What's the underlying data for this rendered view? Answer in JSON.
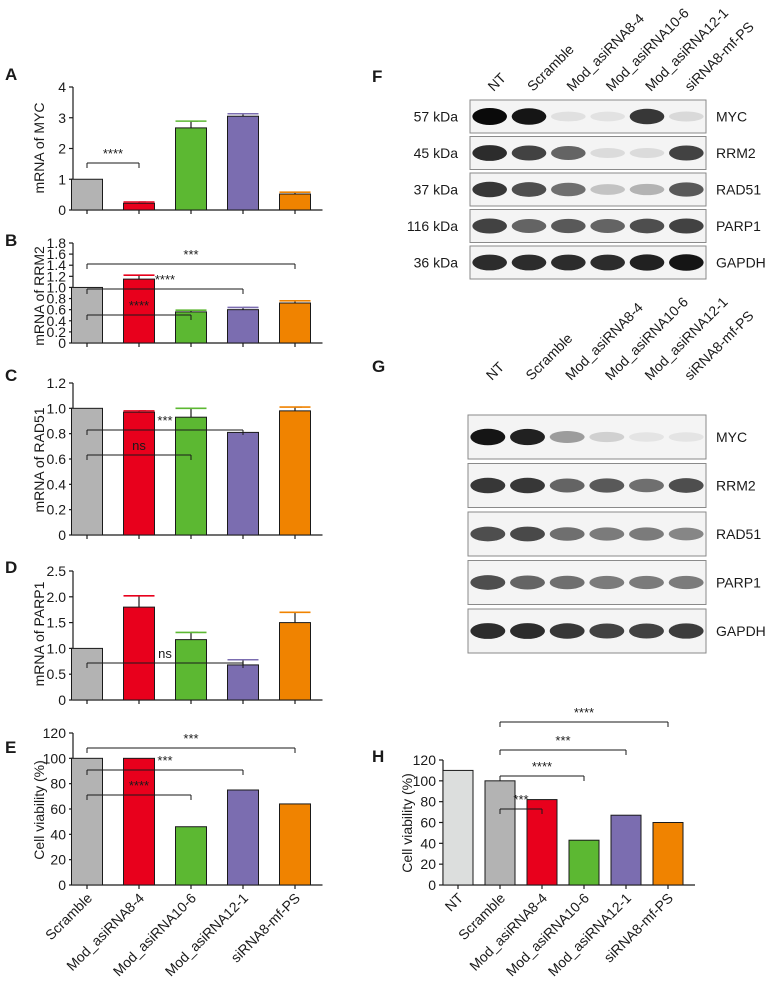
{
  "panel_letters": {
    "A": "A",
    "B": "B",
    "C": "C",
    "D": "D",
    "E": "E",
    "F": "F",
    "G": "G",
    "H": "H"
  },
  "colors": {
    "Scramble": "#b3b3b3",
    "Mod_asiRNA8-4": "#e8001c",
    "Mod_asiRNA10-6": "#5cb832",
    "Mod_asiRNA12-1": "#7b6db0",
    "siRNA8-mf-PS": "#f08300",
    "NT": "#dcdedd"
  },
  "chart_data": [
    {
      "id": "A",
      "type": "bar",
      "ylabel": "mRNA of MYC",
      "ylim": [
        0,
        4
      ],
      "yticks": [
        "0",
        "1",
        "2",
        "3",
        "4"
      ],
      "categories": [
        "Scramble",
        "Mod_asiRNA8-4",
        "Mod_asiRNA10-6",
        "Mod_asiRNA12-1",
        "siRNA8-mf-PS"
      ],
      "values": [
        1.0,
        0.22,
        2.67,
        3.05,
        0.52
      ],
      "errors": [
        0,
        0.04,
        0.22,
        0.08,
        0.06
      ],
      "significance": [
        {
          "from": 0,
          "to": 1,
          "label": "****"
        }
      ]
    },
    {
      "id": "B",
      "type": "bar",
      "ylabel": "mRNA of RRM2",
      "ylim": [
        0,
        1.8
      ],
      "yticks": [
        "0",
        "0.2",
        "0.4",
        "0.6",
        "0.8",
        "1.0",
        "1.2",
        "1.4",
        "1.6",
        "1.8"
      ],
      "categories": [
        "Scramble",
        "Mod_asiRNA8-4",
        "Mod_asiRNA10-6",
        "Mod_asiRNA12-1",
        "siRNA8-mf-PS"
      ],
      "values": [
        1.0,
        1.15,
        0.56,
        0.6,
        0.72
      ],
      "errors": [
        0,
        0.07,
        0.03,
        0.04,
        0.04
      ],
      "significance": [
        {
          "from": 0,
          "to": 2,
          "label": "****"
        },
        {
          "from": 0,
          "to": 3,
          "label": "****"
        },
        {
          "from": 0,
          "to": 4,
          "label": "***"
        }
      ]
    },
    {
      "id": "C",
      "type": "bar",
      "ylabel": "mRNA of RAD51",
      "ylim": [
        0,
        1.2
      ],
      "yticks": [
        "0",
        "0.2",
        "0.4",
        "0.6",
        "0.8",
        "1.0",
        "1.2"
      ],
      "categories": [
        "Scramble",
        "Mod_asiRNA8-4",
        "Mod_asiRNA10-6",
        "Mod_asiRNA12-1",
        "siRNA8-mf-PS"
      ],
      "values": [
        1.0,
        0.97,
        0.93,
        0.81,
        0.98
      ],
      "errors": [
        0,
        0.01,
        0.07,
        0,
        0.03
      ],
      "significance": [
        {
          "from": 0,
          "to": 2,
          "label": "ns"
        },
        {
          "from": 0,
          "to": 3,
          "label": "***"
        }
      ]
    },
    {
      "id": "D",
      "type": "bar",
      "ylabel": "mRNA of PARP1",
      "ylim": [
        0,
        2.5
      ],
      "yticks": [
        "0",
        "0.5",
        "1.0",
        "1.5",
        "2.0",
        "2.5"
      ],
      "categories": [
        "Scramble",
        "Mod_asiRNA8-4",
        "Mod_asiRNA10-6",
        "Mod_asiRNA12-1",
        "siRNA8-mf-PS"
      ],
      "values": [
        1.0,
        1.8,
        1.17,
        0.68,
        1.5
      ],
      "errors": [
        0,
        0.22,
        0.14,
        0.1,
        0.2
      ],
      "significance": [
        {
          "from": 0,
          "to": 3,
          "label": "ns"
        }
      ]
    },
    {
      "id": "E",
      "type": "bar",
      "ylabel": "Cell viability (%)",
      "ylim": [
        0,
        120
      ],
      "yticks": [
        "0",
        "20",
        "40",
        "60",
        "80",
        "100",
        "120"
      ],
      "categories": [
        "Scramble",
        "Mod_asiRNA8-4",
        "Mod_asiRNA10-6",
        "Mod_asiRNA12-1",
        "siRNA8-mf-PS"
      ],
      "xticklabels": [
        "Scramble",
        "Mod_asiRNA8-4",
        "Mod_asiRNA10-6",
        "Mod_asiRNA12-1",
        "siRNA8-mf-PS"
      ],
      "values": [
        100,
        100,
        46,
        75,
        64
      ],
      "errors": [
        0,
        0,
        0,
        0,
        0
      ],
      "significance": [
        {
          "from": 0,
          "to": 2,
          "label": "****"
        },
        {
          "from": 0,
          "to": 3,
          "label": "***"
        },
        {
          "from": 0,
          "to": 4,
          "label": "***"
        }
      ]
    },
    {
      "id": "H",
      "type": "bar",
      "ylabel": "Cell viability (%)",
      "ylim": [
        0,
        120
      ],
      "yticks": [
        "0",
        "20",
        "40",
        "60",
        "80",
        "100",
        "120"
      ],
      "categories": [
        "NT",
        "Scramble",
        "Mod_asiRNA8-4",
        "Mod_asiRNA10-6",
        "Mod_asiRNA12-1",
        "siRNA8-mf-PS"
      ],
      "xticklabels": [
        "NT",
        "Scramble",
        "Mod_asiRNA8-4",
        "Mod_asiRNA10-6",
        "Mod_asiRNA12-1",
        "siRNA8-mf-PS"
      ],
      "values": [
        110,
        100,
        82,
        43,
        67,
        60
      ],
      "errors": [
        0,
        0,
        0,
        0,
        0,
        0
      ],
      "significance": [
        {
          "from": 1,
          "to": 2,
          "label": "***"
        },
        {
          "from": 1,
          "to": 3,
          "label": "****"
        },
        {
          "from": 1,
          "to": 4,
          "label": "***"
        },
        {
          "from": 1,
          "to": 5,
          "label": "****"
        }
      ]
    }
  ],
  "western_blots": {
    "F": {
      "lanes": [
        "NT",
        "Scramble",
        "Mod_asiRNA8-4",
        "Mod_asiRNA10-6",
        "Mod_asiRNA12-1",
        "siRNA8-mf-PS"
      ],
      "rows": [
        {
          "size": "57 kDa",
          "protein": "MYC",
          "intensity": [
            1.0,
            0.95,
            0.05,
            0.04,
            0.8,
            0.08
          ]
        },
        {
          "size": "45 kDa",
          "protein": "RRM2",
          "intensity": [
            0.85,
            0.75,
            0.6,
            0.07,
            0.07,
            0.75
          ]
        },
        {
          "size": "37 kDa",
          "protein": "RAD51",
          "intensity": [
            0.8,
            0.7,
            0.55,
            0.18,
            0.25,
            0.65
          ]
        },
        {
          "size": "116 kDa",
          "protein": "PARP1",
          "intensity": [
            0.75,
            0.6,
            0.65,
            0.6,
            0.7,
            0.75
          ]
        },
        {
          "size": "36 kDa",
          "protein": "GAPDH",
          "intensity": [
            0.85,
            0.85,
            0.85,
            0.85,
            0.9,
            0.95
          ]
        }
      ]
    },
    "G": {
      "lanes": [
        "NT",
        "Scramble",
        "Mod_asiRNA8-4",
        "Mod_asiRNA10-6",
        "Mod_asiRNA12-1",
        "siRNA8-mf-PS"
      ],
      "rows": [
        {
          "protein": "MYC",
          "intensity": [
            0.95,
            0.9,
            0.35,
            0.12,
            0.03,
            0.03
          ]
        },
        {
          "protein": "RRM2",
          "intensity": [
            0.8,
            0.8,
            0.6,
            0.65,
            0.55,
            0.7
          ]
        },
        {
          "protein": "RAD51",
          "intensity": [
            0.7,
            0.72,
            0.55,
            0.5,
            0.5,
            0.45
          ]
        },
        {
          "protein": "PARP1",
          "intensity": [
            0.7,
            0.6,
            0.55,
            0.5,
            0.5,
            0.5
          ]
        },
        {
          "protein": "GAPDH",
          "intensity": [
            0.85,
            0.85,
            0.8,
            0.75,
            0.75,
            0.78
          ]
        }
      ]
    }
  }
}
